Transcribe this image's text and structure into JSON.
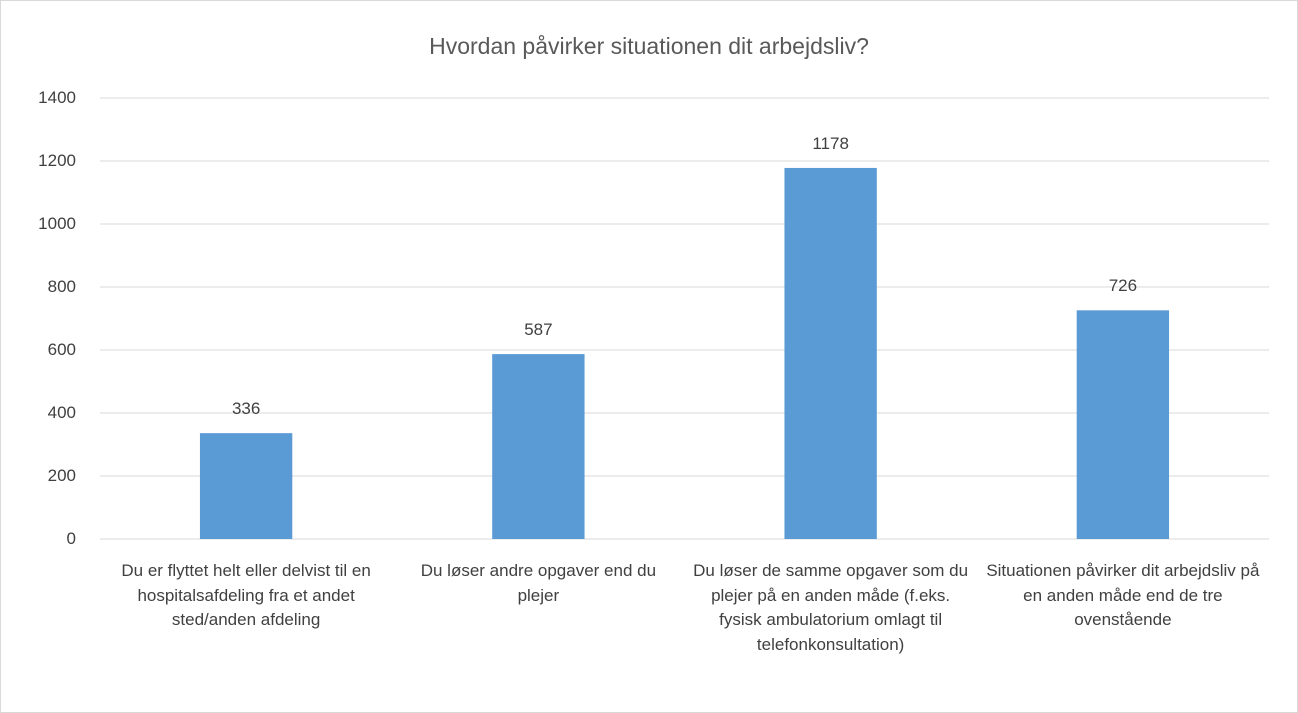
{
  "chart_data": {
    "type": "bar",
    "title": "Hvordan påvirker situationen dit arbejdsliv?",
    "categories": [
      "Du er flyttet helt eller delvist til en hospitalsafdeling fra et andet sted/anden afdeling",
      "Du løser andre opgaver end du plejer",
      "Du løser de samme opgaver som du plejer på en anden måde (f.eks. fysisk ambulatorium omlagt til telefonkonsultation)",
      "Situationen påvirker dit arbejdsliv på en anden måde end de tre ovenstående"
    ],
    "values": [
      336,
      587,
      1178,
      726
    ],
    "color": "#5b9bd5",
    "ylim": [
      0,
      1400
    ],
    "yticks": [
      0,
      200,
      400,
      600,
      800,
      1000,
      1200,
      1400
    ],
    "grid": true
  }
}
